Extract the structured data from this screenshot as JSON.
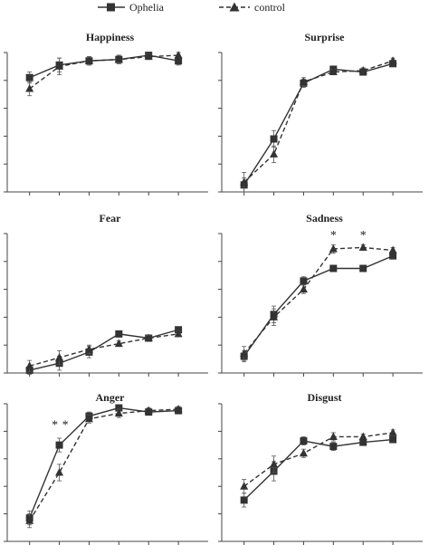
{
  "legend": {
    "ophelia_label": "Ophelia",
    "control_label": "control"
  },
  "chart_data": [
    {
      "type": "line",
      "title": "Happiness",
      "x": [
        1,
        2,
        3,
        4,
        5,
        6
      ],
      "ylim": [
        0,
        1
      ],
      "series": [
        {
          "name": "Ophelia",
          "style": "solid",
          "marker": "square",
          "values": [
            0.82,
            0.91,
            0.94,
            0.95,
            0.98,
            0.94
          ],
          "errors": [
            0.04,
            0.05,
            0.03,
            0.03,
            0.02,
            0.03
          ]
        },
        {
          "name": "control",
          "style": "dashed",
          "marker": "triangle",
          "values": [
            0.74,
            0.9,
            0.94,
            0.95,
            0.97,
            0.98
          ],
          "errors": [
            0.05,
            0.06,
            0.03,
            0.03,
            0.02,
            0.02
          ]
        }
      ],
      "annotations": []
    },
    {
      "type": "line",
      "title": "Surprise",
      "x": [
        1,
        2,
        3,
        4,
        5,
        6
      ],
      "ylim": [
        0,
        1
      ],
      "series": [
        {
          "name": "Ophelia",
          "style": "solid",
          "marker": "square",
          "values": [
            0.05,
            0.38,
            0.78,
            0.88,
            0.86,
            0.92
          ],
          "errors": [
            0.05,
            0.06,
            0.03,
            0.02,
            0.02,
            0.02
          ]
        },
        {
          "name": "control",
          "style": "dashed",
          "marker": "triangle",
          "values": [
            0.07,
            0.27,
            0.79,
            0.86,
            0.87,
            0.94
          ],
          "errors": [
            0.07,
            0.06,
            0.03,
            0.02,
            0.02,
            0.02
          ]
        }
      ],
      "annotations": []
    },
    {
      "type": "line",
      "title": "Fear",
      "x": [
        1,
        2,
        3,
        4,
        5,
        6
      ],
      "ylim": [
        0,
        1
      ],
      "series": [
        {
          "name": "Ophelia",
          "style": "solid",
          "marker": "square",
          "values": [
            0.02,
            0.07,
            0.15,
            0.28,
            0.25,
            0.31
          ],
          "errors": [
            0.03,
            0.05,
            0.04,
            0.02,
            0.02,
            0.02
          ]
        },
        {
          "name": "control",
          "style": "dashed",
          "marker": "triangle",
          "values": [
            0.05,
            0.11,
            0.17,
            0.21,
            0.25,
            0.28
          ],
          "errors": [
            0.04,
            0.05,
            0.03,
            0.02,
            0.02,
            0.02
          ]
        }
      ],
      "annotations": []
    },
    {
      "type": "line",
      "title": "Sadness",
      "x": [
        1,
        2,
        3,
        4,
        5,
        6
      ],
      "ylim": [
        0,
        1
      ],
      "series": [
        {
          "name": "Ophelia",
          "style": "solid",
          "marker": "square",
          "values": [
            0.12,
            0.42,
            0.66,
            0.75,
            0.75,
            0.84
          ],
          "errors": [
            0.04,
            0.06,
            0.03,
            0.02,
            0.02,
            0.02
          ]
        },
        {
          "name": "control",
          "style": "dashed",
          "marker": "triangle",
          "values": [
            0.14,
            0.4,
            0.6,
            0.89,
            0.9,
            0.88
          ],
          "errors": [
            0.05,
            0.06,
            0.03,
            0.03,
            0.02,
            0.02
          ]
        }
      ],
      "annotations": [
        {
          "text": "*",
          "x": 4,
          "y": 0.96
        },
        {
          "text": "*",
          "x": 5,
          "y": 0.96
        }
      ]
    },
    {
      "type": "line",
      "title": "Anger",
      "x": [
        1,
        2,
        3,
        4,
        5,
        6
      ],
      "ylim": [
        0,
        1
      ],
      "series": [
        {
          "name": "Ophelia",
          "style": "solid",
          "marker": "square",
          "values": [
            0.17,
            0.7,
            0.91,
            0.97,
            0.94,
            0.95
          ],
          "errors": [
            0.05,
            0.05,
            0.03,
            0.02,
            0.02,
            0.02
          ]
        },
        {
          "name": "control",
          "style": "dashed",
          "marker": "triangle",
          "values": [
            0.15,
            0.5,
            0.89,
            0.93,
            0.95,
            0.96
          ],
          "errors": [
            0.05,
            0.06,
            0.03,
            0.03,
            0.02,
            0.02
          ]
        }
      ],
      "annotations": [
        {
          "text": "*",
          "x": 1.85,
          "y": 0.82
        },
        {
          "text": "*",
          "x": 2.2,
          "y": 0.82
        }
      ]
    },
    {
      "type": "line",
      "title": "Disgust",
      "x": [
        1,
        2,
        3,
        4,
        5,
        6
      ],
      "ylim": [
        0,
        1
      ],
      "series": [
        {
          "name": "Ophelia",
          "style": "solid",
          "marker": "square",
          "values": [
            0.3,
            0.51,
            0.73,
            0.69,
            0.72,
            0.74
          ],
          "errors": [
            0.05,
            0.07,
            0.03,
            0.03,
            0.02,
            0.02
          ]
        },
        {
          "name": "control",
          "style": "dashed",
          "marker": "triangle",
          "values": [
            0.4,
            0.56,
            0.64,
            0.76,
            0.76,
            0.79
          ],
          "errors": [
            0.05,
            0.06,
            0.03,
            0.03,
            0.02,
            0.02
          ]
        }
      ],
      "annotations": []
    }
  ]
}
